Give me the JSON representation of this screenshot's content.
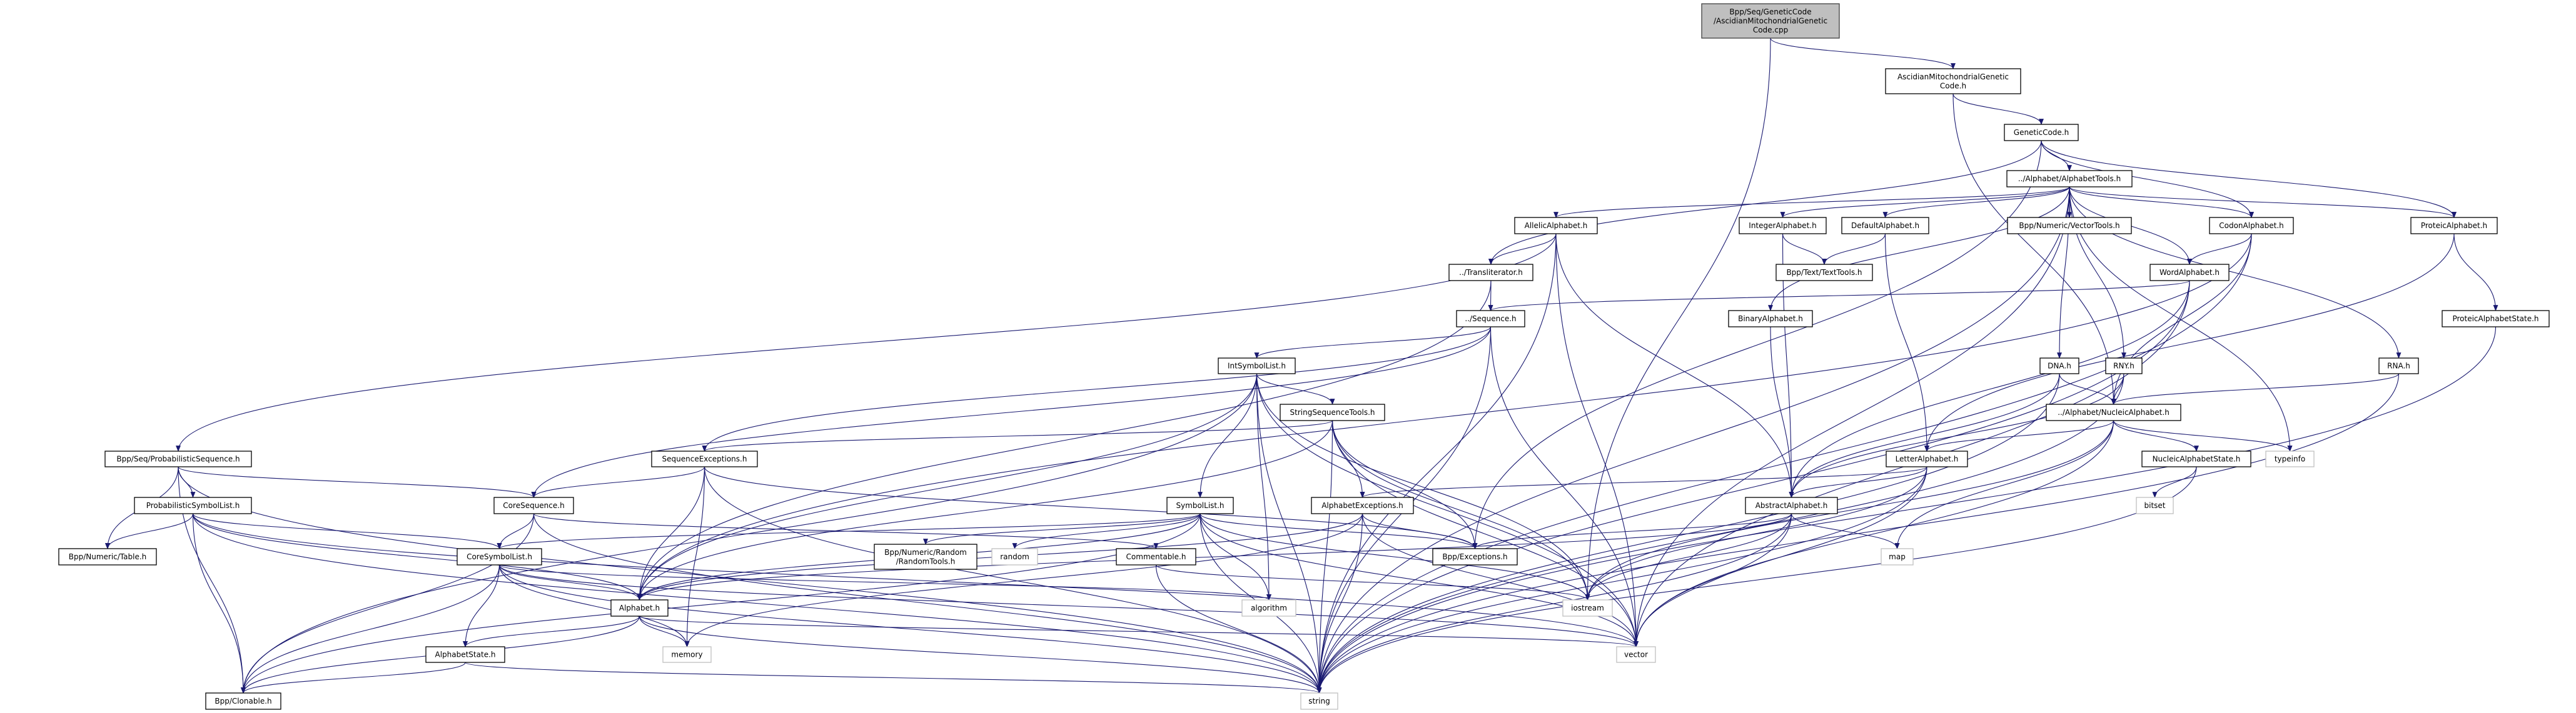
{
  "colors": {
    "edge": "#191970",
    "root_fill": "#bfbfbf",
    "node_border": "#000000",
    "external_border": "#bfbfbf"
  },
  "nodes": {
    "root": {
      "lines": [
        "Bpp/Seq/GeneticCode",
        "/AscidianMitochondrialGenetic",
        "Code.cpp"
      ],
      "kind": "root"
    },
    "ascidian_h": {
      "lines": [
        "AscidianMitochondrialGenetic",
        "Code.h"
      ]
    },
    "genetic_code": {
      "lines": [
        "GeneticCode.h"
      ]
    },
    "alphabet_tools": {
      "lines": [
        "../Alphabet/AlphabetTools.h"
      ]
    },
    "allelic": {
      "lines": [
        "AllelicAlphabet.h"
      ]
    },
    "integer": {
      "lines": [
        "IntegerAlphabet.h"
      ]
    },
    "default": {
      "lines": [
        "DefaultAlphabet.h"
      ]
    },
    "vector_tools": {
      "lines": [
        "Bpp/Numeric/VectorTools.h"
      ]
    },
    "codon": {
      "lines": [
        "CodonAlphabet.h"
      ]
    },
    "proteic": {
      "lines": [
        "ProteicAlphabet.h"
      ]
    },
    "transliterator": {
      "lines": [
        "../Transliterator.h"
      ]
    },
    "text_tools": {
      "lines": [
        "Bpp/Text/TextTools.h"
      ]
    },
    "word": {
      "lines": [
        "WordAlphabet.h"
      ]
    },
    "sequence": {
      "lines": [
        "../Sequence.h"
      ]
    },
    "binary": {
      "lines": [
        "BinaryAlphabet.h"
      ]
    },
    "proteic_state": {
      "lines": [
        "ProteicAlphabetState.h"
      ]
    },
    "int_symbol_list": {
      "lines": [
        "IntSymbolList.h"
      ]
    },
    "dna": {
      "lines": [
        "DNA.h"
      ]
    },
    "rny": {
      "lines": [
        "RNY.h"
      ]
    },
    "rna": {
      "lines": [
        "RNA.h"
      ]
    },
    "string_seq_tools": {
      "lines": [
        "StringSequenceTools.h"
      ]
    },
    "nucleic": {
      "lines": [
        "../Alphabet/NucleicAlphabet.h"
      ]
    },
    "prob_sequence": {
      "lines": [
        "Bpp/Seq/ProbabilisticSequence.h"
      ]
    },
    "seq_exceptions": {
      "lines": [
        "SequenceExceptions.h"
      ]
    },
    "letter": {
      "lines": [
        "LetterAlphabet.h"
      ]
    },
    "nucleic_state": {
      "lines": [
        "NucleicAlphabetState.h"
      ]
    },
    "typeinfo": {
      "lines": [
        "typeinfo"
      ],
      "kind": "ext"
    },
    "prob_symbol_list": {
      "lines": [
        "ProbabilisticSymbolList.h"
      ]
    },
    "core_sequence": {
      "lines": [
        "CoreSequence.h"
      ]
    },
    "symbol_list": {
      "lines": [
        "SymbolList.h"
      ]
    },
    "alphabet_exceptions": {
      "lines": [
        "AlphabetExceptions.h"
      ]
    },
    "abstract": {
      "lines": [
        "AbstractAlphabet.h"
      ]
    },
    "bitset": {
      "lines": [
        "bitset"
      ],
      "kind": "ext"
    },
    "table": {
      "lines": [
        "Bpp/Numeric/Table.h"
      ]
    },
    "core_symbol_list": {
      "lines": [
        "CoreSymbolList.h"
      ]
    },
    "random_tools": {
      "lines": [
        "Bpp/Numeric/Random",
        "/RandomTools.h"
      ]
    },
    "random": {
      "lines": [
        "random"
      ],
      "kind": "ext"
    },
    "commentable": {
      "lines": [
        "Commentable.h"
      ]
    },
    "exceptions": {
      "lines": [
        "Bpp/Exceptions.h"
      ]
    },
    "map": {
      "lines": [
        "map"
      ],
      "kind": "ext"
    },
    "alphabet": {
      "lines": [
        "Alphabet.h"
      ]
    },
    "algorithm": {
      "lines": [
        "algorithm"
      ],
      "kind": "ext"
    },
    "iostream": {
      "lines": [
        "iostream"
      ],
      "kind": "ext"
    },
    "alphabet_state": {
      "lines": [
        "AlphabetState.h"
      ]
    },
    "memory": {
      "lines": [
        "memory"
      ],
      "kind": "ext"
    },
    "vector": {
      "lines": [
        "vector"
      ],
      "kind": "ext"
    },
    "clonable": {
      "lines": [
        "Bpp/Clonable.h"
      ]
    },
    "string": {
      "lines": [
        "string"
      ],
      "kind": "ext"
    }
  },
  "edges": [
    [
      "root",
      "ascidian_h"
    ],
    [
      "root",
      "iostream"
    ],
    [
      "ascidian_h",
      "genetic_code"
    ],
    [
      "ascidian_h",
      "nucleic"
    ],
    [
      "genetic_code",
      "alphabet_tools"
    ],
    [
      "genetic_code",
      "codon"
    ],
    [
      "genetic_code",
      "proteic"
    ],
    [
      "genetic_code",
      "transliterator"
    ],
    [
      "genetic_code",
      "exceptions"
    ],
    [
      "alphabet_tools",
      "allelic"
    ],
    [
      "alphabet_tools",
      "integer"
    ],
    [
      "alphabet_tools",
      "default"
    ],
    [
      "alphabet_tools",
      "vector_tools"
    ],
    [
      "alphabet_tools",
      "codon"
    ],
    [
      "alphabet_tools",
      "proteic"
    ],
    [
      "alphabet_tools",
      "word"
    ],
    [
      "alphabet_tools",
      "dna"
    ],
    [
      "alphabet_tools",
      "rna"
    ],
    [
      "alphabet_tools",
      "rny"
    ],
    [
      "alphabet_tools",
      "binary"
    ],
    [
      "alphabet_tools",
      "typeinfo"
    ],
    [
      "alphabet_tools",
      "string"
    ],
    [
      "alphabet_tools",
      "vector"
    ],
    [
      "allelic",
      "transliterator"
    ],
    [
      "allelic",
      "abstract"
    ],
    [
      "allelic",
      "prob_sequence"
    ],
    [
      "allelic",
      "vector"
    ],
    [
      "allelic",
      "string"
    ],
    [
      "integer",
      "text_tools"
    ],
    [
      "integer",
      "abstract"
    ],
    [
      "default",
      "text_tools"
    ],
    [
      "default",
      "letter"
    ],
    [
      "codon",
      "word"
    ],
    [
      "codon",
      "nucleic"
    ],
    [
      "codon",
      "alphabet"
    ],
    [
      "codon",
      "string"
    ],
    [
      "proteic",
      "proteic_state"
    ],
    [
      "proteic",
      "letter"
    ],
    [
      "word",
      "sequence"
    ],
    [
      "word",
      "abstract"
    ],
    [
      "word",
      "vector"
    ],
    [
      "word",
      "string"
    ],
    [
      "transliterator",
      "sequence"
    ],
    [
      "transliterator",
      "alphabet"
    ],
    [
      "sequence",
      "int_symbol_list"
    ],
    [
      "sequence",
      "seq_exceptions"
    ],
    [
      "sequence",
      "core_sequence"
    ],
    [
      "sequence",
      "vector"
    ],
    [
      "sequence",
      "string"
    ],
    [
      "binary",
      "abstract"
    ],
    [
      "proteic_state",
      "string"
    ],
    [
      "dna",
      "nucleic"
    ],
    [
      "dna",
      "abstract"
    ],
    [
      "dna",
      "string"
    ],
    [
      "rny",
      "nucleic"
    ],
    [
      "rny",
      "abstract"
    ],
    [
      "rny",
      "string"
    ],
    [
      "rna",
      "nucleic"
    ],
    [
      "rna",
      "string"
    ],
    [
      "nucleic",
      "letter"
    ],
    [
      "nucleic",
      "nucleic_state"
    ],
    [
      "nucleic",
      "typeinfo"
    ],
    [
      "nucleic",
      "map"
    ],
    [
      "nucleic",
      "iostream"
    ],
    [
      "nucleic",
      "vector"
    ],
    [
      "nucleic_state",
      "bitset"
    ],
    [
      "nucleic_state",
      "string"
    ],
    [
      "letter",
      "abstract"
    ],
    [
      "letter",
      "alphabet_exceptions"
    ],
    [
      "letter",
      "iostream"
    ],
    [
      "letter",
      "vector"
    ],
    [
      "letter",
      "string"
    ],
    [
      "int_symbol_list",
      "symbol_list"
    ],
    [
      "int_symbol_list",
      "string_seq_tools"
    ],
    [
      "int_symbol_list",
      "alphabet"
    ],
    [
      "int_symbol_list",
      "clonable"
    ],
    [
      "int_symbol_list",
      "string"
    ],
    [
      "int_symbol_list",
      "vector"
    ],
    [
      "int_symbol_list",
      "iostream"
    ],
    [
      "int_symbol_list",
      "algorithm"
    ],
    [
      "string_seq_tools",
      "seq_exceptions"
    ],
    [
      "string_seq_tools",
      "alphabet_exceptions"
    ],
    [
      "string_seq_tools",
      "exceptions"
    ],
    [
      "string_seq_tools",
      "string"
    ],
    [
      "string_seq_tools",
      "vector"
    ],
    [
      "string_seq_tools",
      "alphabet"
    ],
    [
      "string_seq_tools",
      "iostream"
    ],
    [
      "seq_exceptions",
      "core_sequence"
    ],
    [
      "seq_exceptions",
      "alphabet"
    ],
    [
      "seq_exceptions",
      "exceptions"
    ],
    [
      "seq_exceptions",
      "memory"
    ],
    [
      "seq_exceptions",
      "string"
    ],
    [
      "alphabet_exceptions",
      "exceptions"
    ],
    [
      "alphabet_exceptions",
      "alphabet"
    ],
    [
      "alphabet_exceptions",
      "vector"
    ],
    [
      "alphabet_exceptions",
      "memory"
    ],
    [
      "alphabet_exceptions",
      "string"
    ],
    [
      "abstract",
      "exceptions"
    ],
    [
      "abstract",
      "alphabet"
    ],
    [
      "abstract",
      "map"
    ],
    [
      "abstract",
      "vector"
    ],
    [
      "abstract",
      "string"
    ],
    [
      "abstract",
      "iostream"
    ],
    [
      "prob_sequence",
      "prob_symbol_list"
    ],
    [
      "prob_sequence",
      "table"
    ],
    [
      "prob_sequence",
      "core_sequence"
    ],
    [
      "prob_sequence",
      "clonable"
    ],
    [
      "prob_sequence",
      "string"
    ],
    [
      "prob_symbol_list",
      "table"
    ],
    [
      "prob_symbol_list",
      "core_symbol_list"
    ],
    [
      "prob_symbol_list",
      "clonable"
    ],
    [
      "prob_symbol_list",
      "alphabet"
    ],
    [
      "prob_symbol_list",
      "string"
    ],
    [
      "prob_symbol_list",
      "vector"
    ],
    [
      "core_sequence",
      "core_symbol_list"
    ],
    [
      "core_sequence",
      "commentable"
    ],
    [
      "core_sequence",
      "clonable"
    ],
    [
      "core_sequence",
      "string"
    ],
    [
      "symbol_list",
      "core_symbol_list"
    ],
    [
      "symbol_list",
      "random_tools"
    ],
    [
      "symbol_list",
      "random"
    ],
    [
      "symbol_list",
      "exceptions"
    ],
    [
      "symbol_list",
      "alphabet"
    ],
    [
      "symbol_list",
      "algorithm"
    ],
    [
      "symbol_list",
      "iostream"
    ],
    [
      "symbol_list",
      "vector"
    ],
    [
      "symbol_list",
      "string"
    ],
    [
      "symbol_list",
      "clonable"
    ],
    [
      "core_symbol_list",
      "alphabet"
    ],
    [
      "core_symbol_list",
      "alphabet_state"
    ],
    [
      "core_symbol_list",
      "clonable"
    ],
    [
      "core_symbol_list",
      "memory"
    ],
    [
      "core_symbol_list",
      "vector"
    ],
    [
      "core_symbol_list",
      "string"
    ],
    [
      "core_symbol_list",
      "algorithm"
    ],
    [
      "commentable",
      "string"
    ],
    [
      "commentable",
      "iostream"
    ],
    [
      "alphabet",
      "alphabet_state"
    ],
    [
      "alphabet",
      "clonable"
    ],
    [
      "alphabet",
      "memory"
    ],
    [
      "alphabet",
      "vector"
    ],
    [
      "alphabet",
      "string"
    ],
    [
      "alphabet_state",
      "clonable"
    ],
    [
      "alphabet_state",
      "string"
    ]
  ]
}
